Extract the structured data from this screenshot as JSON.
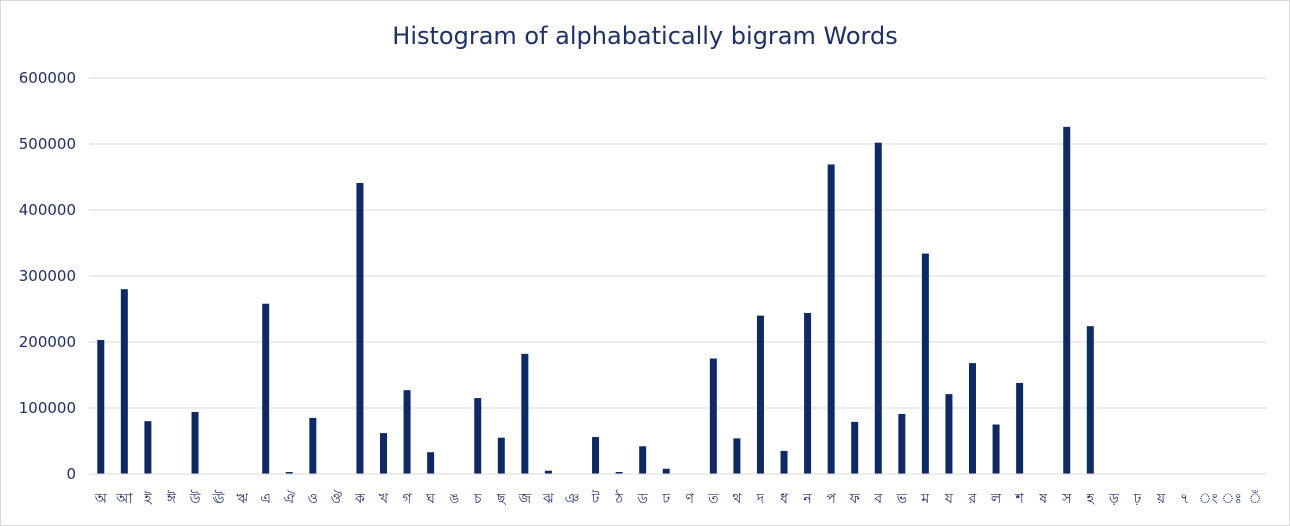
{
  "chart_data": {
    "type": "bar",
    "title": "Histogram of alphabatically bigram Words",
    "xlabel": "",
    "ylabel": "",
    "ylim": [
      0,
      600000
    ],
    "yticks": [
      "0",
      "100000",
      "200000",
      "300000",
      "400000",
      "500000",
      "600000"
    ],
    "grid": true,
    "legend": "none",
    "bar_color": "#0e2a66",
    "categories": [
      "অ",
      "আ",
      "ই",
      "ঈ",
      "উ",
      "ঊ",
      "ঋ",
      "এ",
      "ঐ",
      "ও",
      "ঔ",
      "ক",
      "খ",
      "গ",
      "ঘ",
      "ঙ",
      "চ",
      "ছ",
      "জ",
      "ঝ",
      "ঞ",
      "ট",
      "ঠ",
      "ড",
      "ঢ",
      "ণ",
      "ত",
      "থ",
      "দ",
      "ধ",
      "ন",
      "প",
      "ফ",
      "ব",
      "ভ",
      "ম",
      "য",
      "র",
      "ল",
      "শ",
      "ষ",
      "স",
      "হ",
      "ড়",
      "ঢ়",
      "য়",
      "৭",
      "ং",
      "ঃ",
      "ঁ"
    ],
    "values": [
      203000,
      280000,
      80000,
      0,
      94000,
      0,
      0,
      258000,
      3000,
      85000,
      0,
      441000,
      62000,
      127000,
      33000,
      0,
      115000,
      55000,
      182000,
      5000,
      0,
      56000,
      3000,
      42000,
      8000,
      0,
      175000,
      54000,
      240000,
      35000,
      244000,
      469000,
      79000,
      502000,
      91000,
      334000,
      121000,
      168000,
      75000,
      138000,
      0,
      526000,
      224000,
      0,
      0,
      0,
      0,
      0,
      0,
      0
    ]
  }
}
